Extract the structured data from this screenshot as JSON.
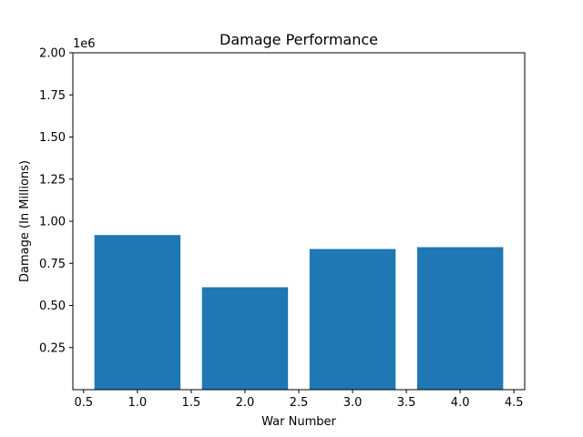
{
  "chart_data": {
    "type": "bar",
    "title": "Damage Performance",
    "xlabel": "War Number",
    "ylabel": "Damage (In Millions)",
    "y_offset_text": "1e6",
    "x": [
      1.0,
      2.0,
      3.0,
      4.0
    ],
    "values": [
      918000,
      608000,
      835000,
      846000
    ],
    "xlim": [
      0.4,
      4.6
    ],
    "ylim": [
      0,
      2000000
    ],
    "xticks": [
      0.5,
      1.0,
      1.5,
      2.0,
      2.5,
      3.0,
      3.5,
      4.0,
      4.5
    ],
    "xtick_labels": [
      "0.5",
      "1.0",
      "1.5",
      "2.0",
      "2.5",
      "3.0",
      "3.5",
      "4.0",
      "4.5"
    ],
    "yticks": [
      250000,
      500000,
      750000,
      1000000,
      1250000,
      1500000,
      1750000,
      2000000
    ],
    "ytick_labels": [
      "0.25",
      "0.50",
      "0.75",
      "1.00",
      "1.25",
      "1.50",
      "1.75",
      "2.00"
    ],
    "bar_width": 0.8,
    "bar_color": "#1f77b4",
    "grid": false,
    "legend": "none"
  }
}
